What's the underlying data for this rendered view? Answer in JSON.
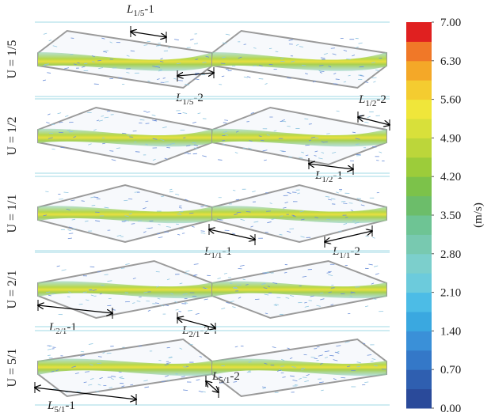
{
  "panels": [
    {
      "label": "U = 1/5",
      "ratio": [
        1,
        5
      ],
      "annotations": [
        {
          "symbol": "L",
          "subscript": "1/5",
          "suffix": "-1"
        },
        {
          "symbol": "L",
          "subscript": "1/5",
          "suffix": "-2"
        }
      ]
    },
    {
      "label": "U = 1/2",
      "ratio": [
        1,
        2
      ],
      "annotations": [
        {
          "symbol": "L",
          "subscript": "1/2",
          "suffix": "-2"
        },
        {
          "symbol": "L",
          "subscript": "1/2",
          "suffix": "-1"
        }
      ]
    },
    {
      "label": "U = 1/1",
      "ratio": [
        1,
        1
      ],
      "annotations": [
        {
          "symbol": "L",
          "subscript": "1/1",
          "suffix": "-1"
        },
        {
          "symbol": "L",
          "subscript": "1/1",
          "suffix": "-2"
        }
      ]
    },
    {
      "label": "U = 2/1",
      "ratio": [
        2,
        1
      ],
      "annotations": [
        {
          "symbol": "L",
          "subscript": "2/1",
          "suffix": "-1"
        },
        {
          "symbol": "L",
          "subscript": "2/1",
          "suffix": "-2"
        }
      ]
    },
    {
      "label": "U = 5/1",
      "ratio": [
        5,
        1
      ],
      "annotations": [
        {
          "symbol": "L",
          "subscript": "5/1",
          "suffix": "-1"
        },
        {
          "symbol": "L",
          "subscript": "5/1",
          "suffix": "-2"
        }
      ]
    }
  ],
  "colorbar": {
    "unit": "(m/s)",
    "lim": [
      0,
      7
    ],
    "ticks": [
      {
        "value": 0,
        "label": "0.00"
      },
      {
        "value": 0.7,
        "label": "0.70"
      },
      {
        "value": 1.4,
        "label": "1.40"
      },
      {
        "value": 2.1,
        "label": "2.10"
      },
      {
        "value": 2.8,
        "label": "2.80"
      },
      {
        "value": 3.5,
        "label": "3.50"
      },
      {
        "value": 4.2,
        "label": "4.20"
      },
      {
        "value": 4.9,
        "label": "4.90"
      },
      {
        "value": 5.6,
        "label": "5.60"
      },
      {
        "value": 6.3,
        "label": "6.30"
      },
      {
        "value": 7,
        "label": "7.00"
      }
    ],
    "colors": [
      "#2a4a9a",
      "#2f5fb0",
      "#3478c8",
      "#3a90d8",
      "#3aa8e0",
      "#4cbce6",
      "#6ccbdc",
      "#7ccfcc",
      "#78c9b0",
      "#6ec494",
      "#6cbd6a",
      "#7cc24a",
      "#9ccc3a",
      "#bcd63a",
      "#d8e03a",
      "#f0e63a",
      "#f4cc30",
      "#f4a828",
      "#f07828",
      "#e02020"
    ]
  }
}
